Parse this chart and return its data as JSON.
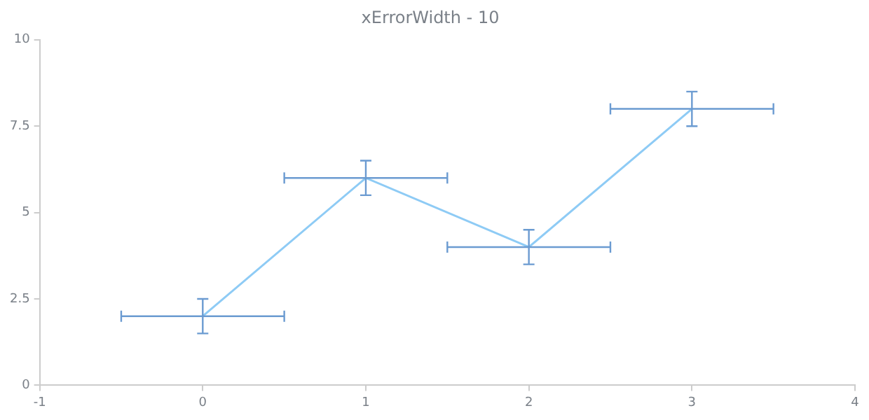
{
  "chart_data": {
    "type": "line",
    "title": "xErrorWidth - 10",
    "x": [
      0,
      1,
      2,
      3
    ],
    "series": [
      {
        "color": "#8ecbf5",
        "values": [
          2,
          6,
          4,
          8
        ],
        "errors": [
          0.5,
          0.5,
          0.5,
          0.5
        ],
        "xerrors": [
          0.5,
          0.5,
          0.5,
          0.5
        ]
      }
    ],
    "xlim": [
      -1,
      4
    ],
    "xticks": [
      -1,
      0,
      1,
      2,
      3,
      4
    ],
    "ylim": [
      0,
      10
    ],
    "yticks": [
      0,
      2.5,
      5,
      7.5,
      10
    ],
    "grid": false,
    "legend": false,
    "marker": "none"
  }
}
